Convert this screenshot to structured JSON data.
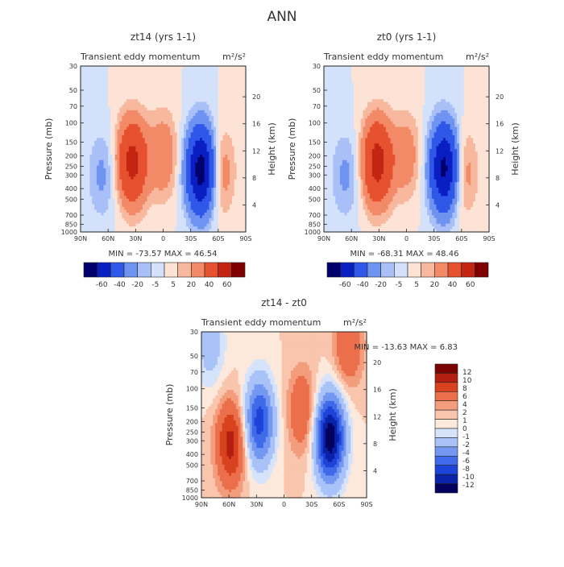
{
  "figure_title": "ANN",
  "chart_data": [
    {
      "type": "heatmap",
      "name": "top-left",
      "title": "zt14 (yrs 1-1)",
      "left_subtitle": "Transient eddy momentum",
      "units": "m²/s²",
      "ylabel": "Pressure (mb)",
      "ylabel_right": "Height (km)",
      "x_ticks": [
        "90N",
        "60N",
        "30N",
        "0",
        "30S",
        "60S",
        "90S"
      ],
      "y_ticks": [
        "30",
        "50",
        "70",
        "100",
        "150",
        "200",
        "250",
        "300",
        "400",
        "500",
        "700",
        "850",
        "1000"
      ],
      "height_ticks": [
        "4",
        "8",
        "12",
        "16",
        "20"
      ],
      "stats": "MIN = -73.57   MAX = 46.54",
      "levels": [
        "-60",
        "-40",
        "-20",
        "-5",
        "5",
        "20",
        "40",
        "60"
      ],
      "features": [
        {
          "lat": 34,
          "p": 230,
          "value": 46.54
        },
        {
          "lat": -42,
          "p": 270,
          "value": -73.57
        },
        {
          "lat": 0,
          "p": 200,
          "value": 18
        },
        {
          "lat": -60,
          "p": 280,
          "value": 22
        },
        {
          "lat": 66,
          "p": 300,
          "value": -12
        }
      ]
    },
    {
      "type": "heatmap",
      "name": "top-right",
      "title": "zt0 (yrs 1-1)",
      "left_subtitle": "Transient eddy momentum",
      "units": "m²/s²",
      "ylabel": "Pressure (mb)",
      "ylabel_right": "Height (km)",
      "x_ticks": [
        "90N",
        "60N",
        "30N",
        "0",
        "30S",
        "60S",
        "90S"
      ],
      "y_ticks": [
        "30",
        "50",
        "70",
        "100",
        "150",
        "200",
        "250",
        "300",
        "400",
        "500",
        "700",
        "850",
        "1000"
      ],
      "height_ticks": [
        "4",
        "8",
        "12",
        "16",
        "20"
      ],
      "stats": "MIN = -68.31   MAX = 48.46",
      "levels": [
        "-60",
        "-40",
        "-20",
        "-5",
        "5",
        "20",
        "40",
        "60"
      ],
      "features": [
        {
          "lat": 32,
          "p": 230,
          "value": 48.46
        },
        {
          "lat": -42,
          "p": 260,
          "value": -68.31
        },
        {
          "lat": 0,
          "p": 200,
          "value": 15
        },
        {
          "lat": -60,
          "p": 280,
          "value": 20
        },
        {
          "lat": 66,
          "p": 300,
          "value": -12
        }
      ]
    },
    {
      "type": "heatmap",
      "name": "bottom-diff",
      "title": "zt14 - zt0",
      "left_subtitle": "Transient eddy momentum",
      "units": "m²/s²",
      "ylabel": "Pressure (mb)",
      "ylabel_right": "Height (km)",
      "x_ticks": [
        "90N",
        "60N",
        "30N",
        "0",
        "30S",
        "60S",
        "90S"
      ],
      "y_ticks": [
        "30",
        "50",
        "70",
        "100",
        "150",
        "200",
        "250",
        "300",
        "400",
        "500",
        "700",
        "850",
        "1000"
      ],
      "height_ticks": [
        "4",
        "8",
        "12",
        "16",
        "20"
      ],
      "stats": "MIN = -13.63   MAX =    6.83",
      "levels": [
        "-12",
        "-10",
        "-8",
        "-6",
        "-4",
        "-2",
        "-1",
        "0",
        "1",
        "2",
        "4",
        "6",
        "8",
        "10",
        "12"
      ],
      "features": [
        {
          "lat": 58,
          "p": 320,
          "value": 6.83
        },
        {
          "lat": 27,
          "p": 200,
          "value": -9
        },
        {
          "lat": -50,
          "p": 280,
          "value": -13.63
        },
        {
          "lat": -20,
          "p": 160,
          "value": 4
        },
        {
          "lat": 80,
          "p": 40,
          "value": -3
        },
        {
          "lat": -70,
          "p": 40,
          "value": 4
        }
      ]
    }
  ],
  "colors": {
    "top_scale": [
      "#00006d",
      "#0a1fc2",
      "#2f57e8",
      "#6f93f0",
      "#a8c0f7",
      "#d3e1fb",
      "#fde3d6",
      "#f7b89e",
      "#f28a68",
      "#e6512f",
      "#c42512",
      "#7e0000"
    ],
    "diff_scale": [
      "#03035f",
      "#0b22a8",
      "#1d43d8",
      "#3f6ae9",
      "#7498f2",
      "#a9c2f7",
      "#d5e3fb",
      "#fde8dc",
      "#f9c5ad",
      "#f39d7d",
      "#ec6f4c",
      "#d9421f",
      "#b31f10",
      "#7a0403"
    ]
  }
}
